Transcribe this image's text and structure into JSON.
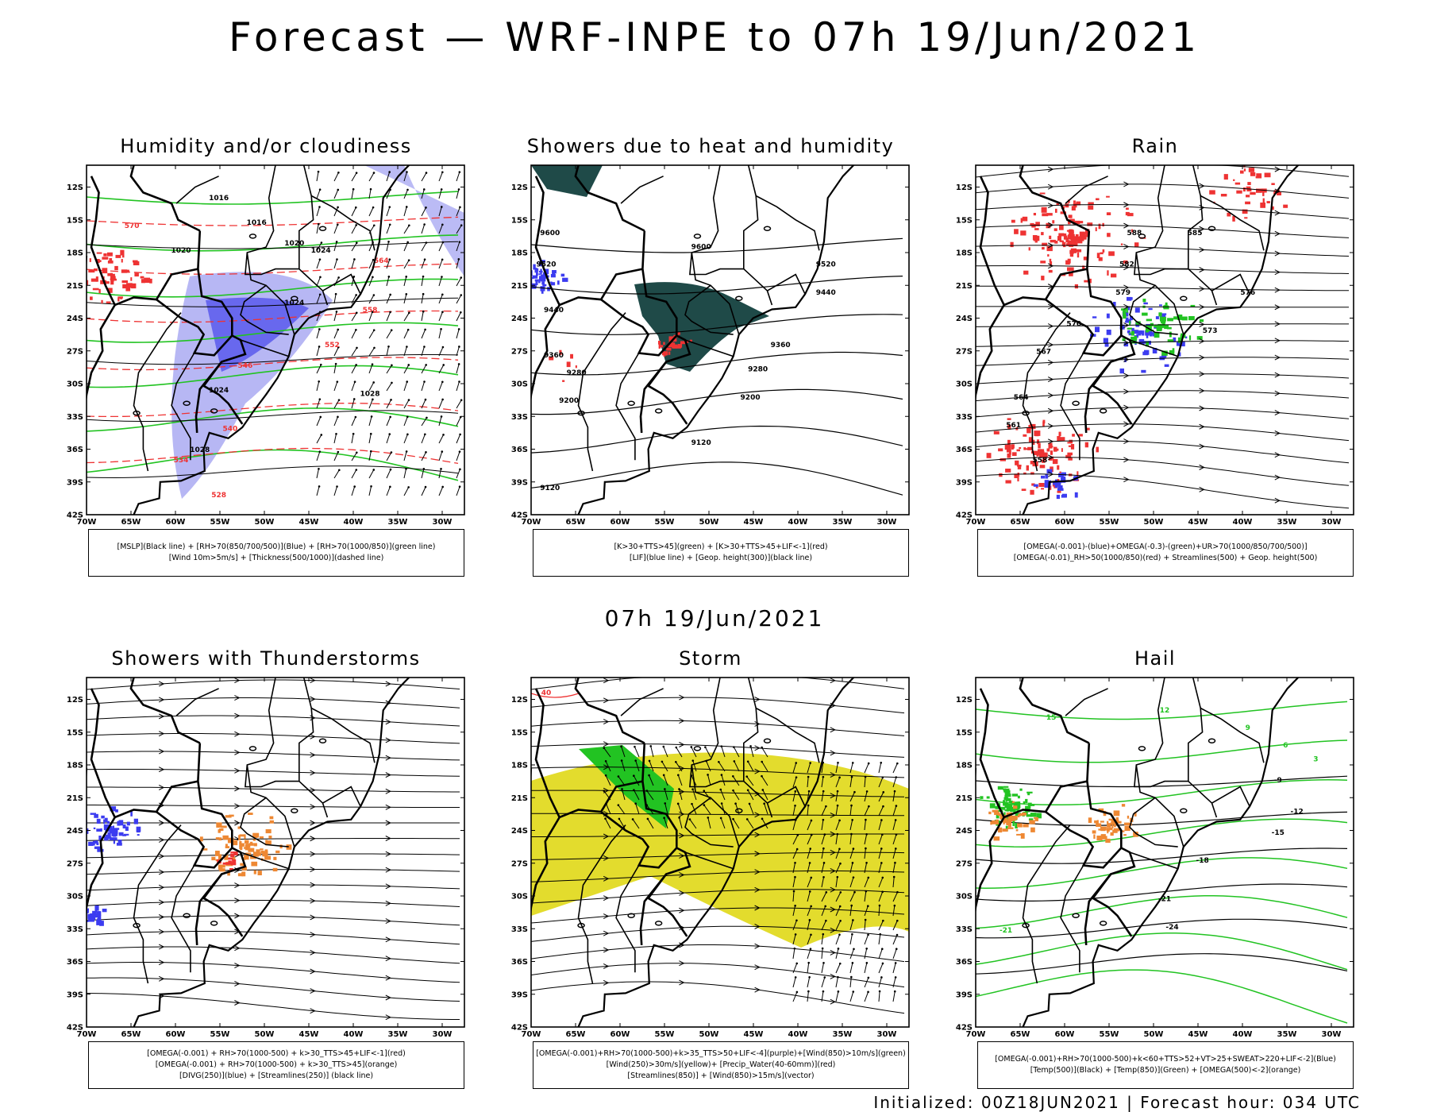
{
  "header": {
    "title": "Forecast — WRF-INPE to 07h 19/Jun/2021",
    "mid_title": "07h 19/Jun/2021"
  },
  "footer": {
    "text": "Initialized: 00Z18JUN2021 | Forecast hour: 034 UTC"
  },
  "axes": {
    "lat_labels": [
      "12S",
      "15S",
      "18S",
      "21S",
      "24S",
      "27S",
      "30S",
      "33S",
      "36S",
      "39S",
      "42S"
    ],
    "lon_labels": [
      "70W",
      "65W",
      "60W",
      "55W",
      "50W",
      "45W",
      "40W",
      "35W",
      "30W"
    ]
  },
  "colors": {
    "green": "#22c322",
    "blue": "#3c3cf0",
    "red": "#ee3333",
    "orange": "#ee8833",
    "dark_teal": "#1f4a48",
    "yellow": "#e3dc2d",
    "light_blue": "#aaaaf2",
    "black": "#000000"
  },
  "panels": [
    {
      "id": "humidity",
      "title": "Humidity and/or cloudiness",
      "legend": [
        "[MSLP](Black line) + [RH>70(850/700/500)](Blue) + [RH>70(1000/850)](green line)",
        "[Wind 10m>5m/s] + [Thickness(500/1000)](dashed line)"
      ],
      "contour_labels": [
        "1016",
        "1016",
        "1020",
        "1020",
        "1024",
        "1024",
        "1028",
        "1024",
        "1028",
        "570",
        "564",
        "558",
        "552",
        "546",
        "540",
        "534",
        "528"
      ]
    },
    {
      "id": "showers-heat",
      "title": "Showers due to heat and humidity",
      "legend": [
        "[K>30+TTS>45](green) + [K>30+TTS>45+LIF<-1](red)",
        "[LIF](blue line) + [Geop. height(300)](black line)"
      ],
      "contour_labels": [
        "9600",
        "9520",
        "9440",
        "9360",
        "9280",
        "9200",
        "9120",
        "9600",
        "9520",
        "9440",
        "9360",
        "9280",
        "9200",
        "9120"
      ]
    },
    {
      "id": "rain",
      "title": "Rain",
      "legend": [
        "[OMEGA(-0.001)-(blue)+OMEGA(-0.3)-(green)+UR>70(1000/850/700/500)]",
        "[OMEGA(-0.01)_RH>50(1000/850)(red) + Streamlines(500) + Geop. height(500)"
      ],
      "contour_labels": [
        "588",
        "585",
        "582",
        "579",
        "576",
        "573",
        "570",
        "567",
        "564",
        "561",
        "558"
      ]
    },
    {
      "id": "thunderstorms",
      "title": "Showers with Thunderstorms",
      "legend": [
        "[OMEGA(-0.001) + RH>70(1000-500) + k>30_TTS>45+LIF<-1](red)",
        "[OMEGA(-0.001) + RH>70(1000-500) + k>30_TTS>45](orange)",
        "[DIVG(250)](blue) + [Streamlines(250)] (black line)"
      ],
      "contour_labels": []
    },
    {
      "id": "storm",
      "title": "Storm",
      "legend": [
        "[OMEGA(-0.001)+RH>70(1000-500)+k>35_TTS>50+LIF<-4](purple)+[Wind(850)>10m/s](green)",
        "[Wind(250)>30m/s](yellow)+ [Precip_Water(40-60mm)](red)",
        "[Streamlines(850)] + [Wind(850)>15m/s](vector)"
      ],
      "contour_labels": [
        "40"
      ]
    },
    {
      "id": "hail",
      "title": "Hail",
      "legend": [
        "[OMEGA(-0.001)+RH>70(1000-500)+k<60+TTS>52+VT>25+SWEAT>220+LIF<-2](Blue)",
        "[Temp(500)](Black) + [Temp(850)](Green) + [OMEGA(500)<-2](orange)"
      ],
      "contour_labels": [
        "-9",
        "-12",
        "-15",
        "-18",
        "-21",
        "-24",
        "15",
        "12",
        "9",
        "6",
        "3",
        "-21"
      ]
    }
  ]
}
